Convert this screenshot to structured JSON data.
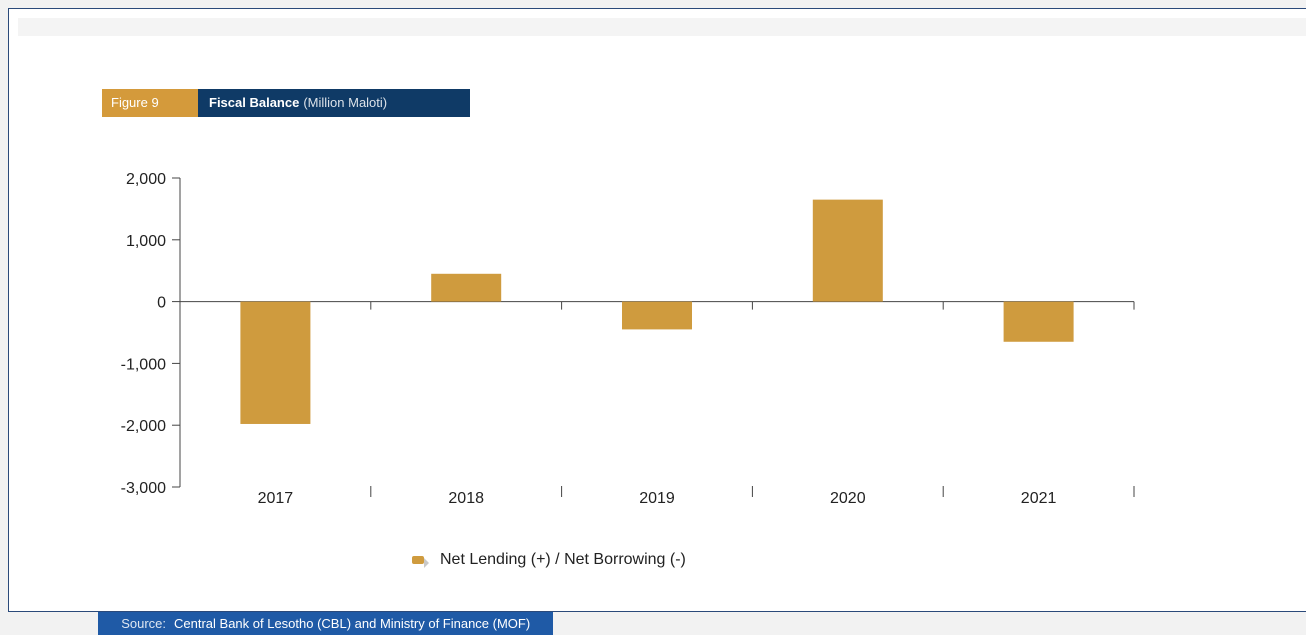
{
  "figure": {
    "tag": "Figure 9",
    "title": "Fiscal Balance",
    "subtitle": "(Million Maloti)"
  },
  "colors": {
    "bar": "#cf9b3e",
    "tag_bg": "#d49a3b",
    "title_bg": "#0f3a66",
    "source_bg": "#1f5aa6",
    "frame_border": "#2b4a7a"
  },
  "source": {
    "label": "Source:",
    "text": "Central Bank of Lesotho (CBL) and Ministry of Finance (MOF)"
  },
  "chart_data": {
    "type": "bar",
    "categories": [
      "2017",
      "2018",
      "2019",
      "2020",
      "2021"
    ],
    "series": [
      {
        "name": "Net Lending (+) / Net Borrowing (-)",
        "values": [
          -1980,
          450,
          -450,
          1650,
          -650
        ]
      }
    ],
    "ylim": [
      -3000,
      2000
    ],
    "yticks": [
      2000,
      1000,
      0,
      -1000,
      -2000,
      -3000
    ],
    "ytick_labels": [
      "2,000",
      "1,000",
      "0",
      "-1,000",
      "-2,000",
      "-3,000"
    ],
    "grid": false,
    "legend_position": "bottom"
  }
}
